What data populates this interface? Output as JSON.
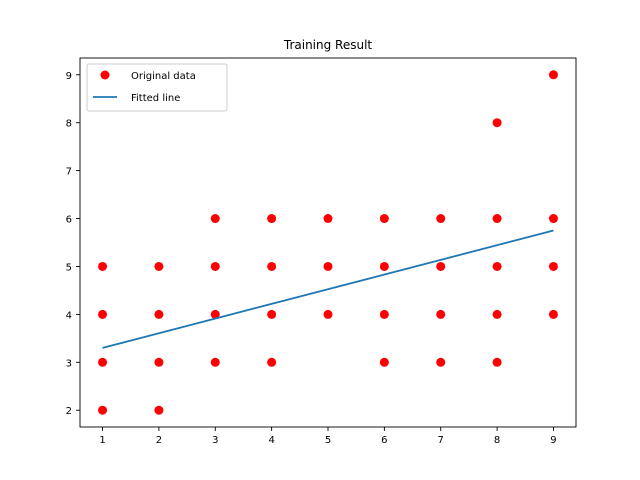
{
  "chart_data": {
    "type": "scatter",
    "title": "Training Result",
    "xlabel": "",
    "ylabel": "",
    "xlim": [
      0.6,
      9.4
    ],
    "ylim": [
      1.65,
      9.35
    ],
    "xticks": [
      "1",
      "2",
      "3",
      "4",
      "5",
      "6",
      "7",
      "8",
      "9"
    ],
    "yticks": [
      "2",
      "3",
      "4",
      "5",
      "6",
      "7",
      "8",
      "9"
    ],
    "grid": false,
    "legend_position": "top-left",
    "series": [
      {
        "name": "Original data",
        "kind": "scatter",
        "color": "#ff0000",
        "points": [
          [
            1,
            2
          ],
          [
            1,
            3
          ],
          [
            1,
            4
          ],
          [
            1,
            5
          ],
          [
            2,
            2
          ],
          [
            2,
            3
          ],
          [
            2,
            4
          ],
          [
            2,
            5
          ],
          [
            3,
            3
          ],
          [
            3,
            4
          ],
          [
            3,
            5
          ],
          [
            3,
            6
          ],
          [
            4,
            3
          ],
          [
            4,
            4
          ],
          [
            4,
            5
          ],
          [
            4,
            6
          ],
          [
            5,
            4
          ],
          [
            5,
            5
          ],
          [
            5,
            6
          ],
          [
            6,
            3
          ],
          [
            6,
            4
          ],
          [
            6,
            5
          ],
          [
            6,
            6
          ],
          [
            7,
            3
          ],
          [
            7,
            4
          ],
          [
            7,
            5
          ],
          [
            7,
            6
          ],
          [
            8,
            3
          ],
          [
            8,
            4
          ],
          [
            8,
            5
          ],
          [
            8,
            6
          ],
          [
            8,
            8
          ],
          [
            9,
            4
          ],
          [
            9,
            5
          ],
          [
            9,
            6
          ],
          [
            9,
            9
          ]
        ]
      },
      {
        "name": "Fitted line",
        "kind": "line",
        "color": "#1f77b4",
        "points": [
          [
            1,
            3.3
          ],
          [
            9,
            5.75
          ]
        ]
      }
    ]
  }
}
